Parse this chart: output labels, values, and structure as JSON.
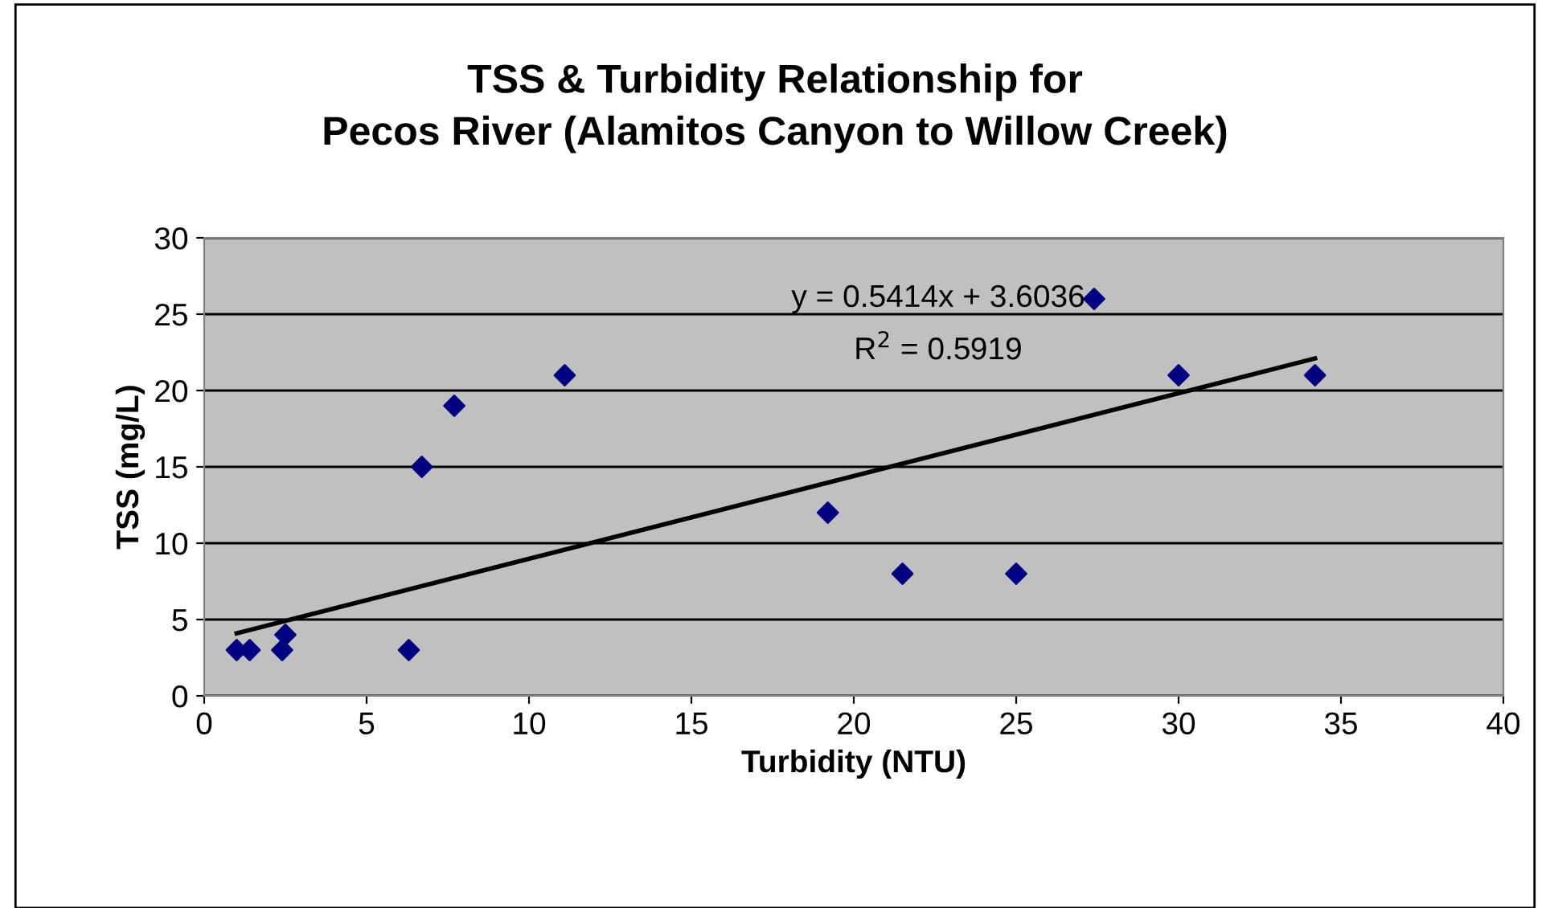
{
  "chart_data": {
    "type": "scatter",
    "title": "TSS & Turbidity Relationship for\nPecos River (Alamitos Canyon to Willow Creek)",
    "xlabel": "Turbidity (NTU)",
    "ylabel": "TSS (mg/L)",
    "series": [
      {
        "color": "#000080",
        "marker": "diamond",
        "x": [
          1.0,
          1.4,
          2.4,
          2.5,
          6.3,
          6.7,
          7.7,
          11.1,
          19.2,
          21.5,
          25.0,
          27.4,
          30.0,
          34.2
        ],
        "values": [
          3,
          3,
          3,
          4,
          3,
          15,
          19,
          21,
          12,
          8,
          8,
          26,
          21,
          21
        ]
      },
      {
        "type": "line",
        "color": "#000000",
        "marker": "none",
        "x": [
          1.0,
          34.2
        ],
        "values": [
          4.1,
          22.1
        ]
      }
    ],
    "annotations": [
      "y = 0.5414x + 3.6036",
      "R$^{2}$ = 0.5919"
    ],
    "xlim": [
      0,
      40
    ],
    "xticks": [
      0,
      5,
      10,
      15,
      20,
      25,
      30,
      35,
      40
    ],
    "ylim": [
      0,
      30
    ],
    "yticks": [
      0,
      5,
      10,
      15,
      20,
      25,
      30
    ],
    "grid": "y",
    "legend": false
  }
}
